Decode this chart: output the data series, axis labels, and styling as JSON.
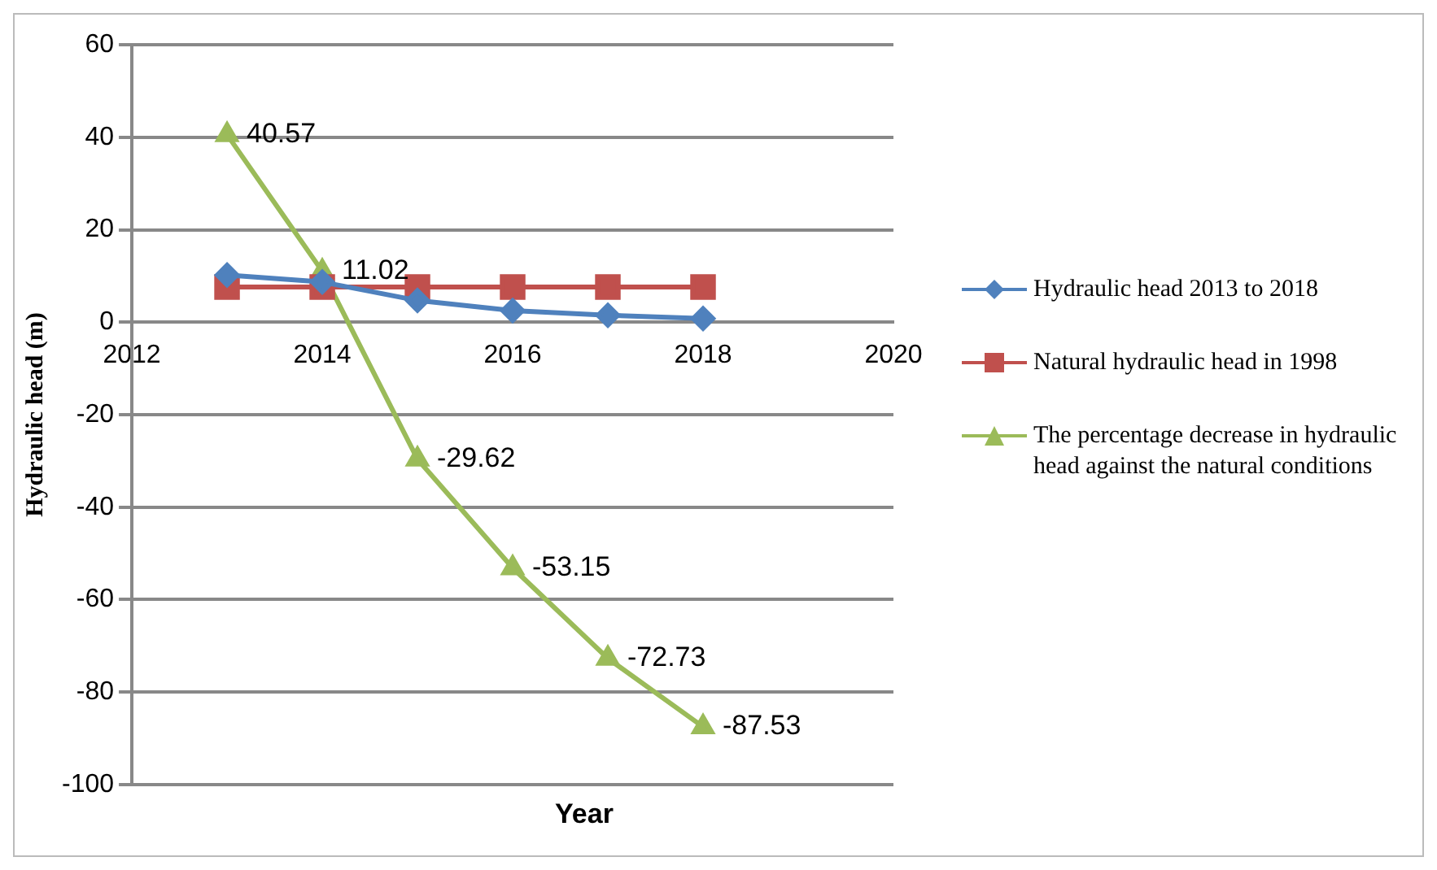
{
  "chart_data": {
    "type": "line",
    "xlabel": "Year",
    "ylabel": "Hydraulic head (m)",
    "x": [
      2013,
      2014,
      2015,
      2016,
      2017,
      2018
    ],
    "xlim": [
      2012,
      2020
    ],
    "xticks": [
      2012,
      2014,
      2016,
      2018,
      2020
    ],
    "ylim": [
      -100,
      60
    ],
    "yticks": [
      -100,
      -80,
      -60,
      -40,
      -20,
      0,
      20,
      40,
      60
    ],
    "grid": "y",
    "legend": "right",
    "series": [
      {
        "name": "Hydraulic head 2013 to 2018",
        "color": "#4f81bd",
        "marker": "diamond",
        "values": [
          10.2,
          8.7,
          4.7,
          2.5,
          1.5,
          0.8
        ]
      },
      {
        "name": "Natural hydraulic head  in 1998",
        "color": "#c0504d",
        "marker": "square",
        "values": [
          7.6,
          7.6,
          7.6,
          7.6,
          7.6,
          7.6
        ]
      },
      {
        "name": "The percentage decrease in hydraulic head against the natural conditions",
        "color": "#9bbb59",
        "marker": "triangle",
        "values": [
          40.57,
          11.02,
          -29.62,
          -53.15,
          -72.73,
          -87.53
        ],
        "value_labels": [
          "40.57",
          "11.02",
          "-29.62",
          "-53.15",
          "-72.73",
          "-87.53"
        ]
      }
    ]
  }
}
